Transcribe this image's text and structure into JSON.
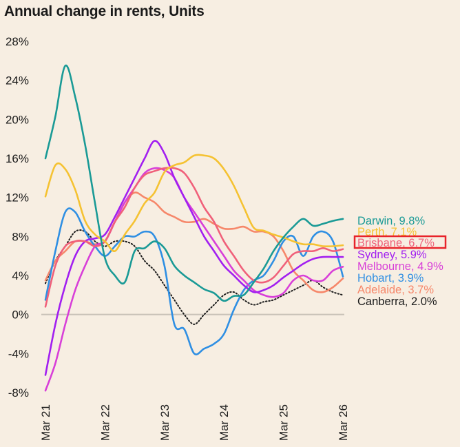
{
  "chart_data": {
    "type": "line",
    "title": "Annual change in rents, Units",
    "xlabel": "",
    "ylabel": "",
    "ylim": [
      -8,
      28
    ],
    "yticks": [
      -8,
      -4,
      0,
      4,
      8,
      12,
      16,
      20,
      24,
      28
    ],
    "ytick_labels": [
      "-8%",
      "-4%",
      "0%",
      "4%",
      "8%",
      "12%",
      "16%",
      "20%",
      "24%",
      "28%"
    ],
    "xticks": [
      "2021-03",
      "2022-03",
      "2023-03",
      "2024-03",
      "2025-03",
      "2026-03"
    ],
    "xtick_labels": [
      "Mar 21",
      "Mar 22",
      "Mar 23",
      "Mar 24",
      "Mar 25",
      "Mar 26"
    ],
    "grid": false,
    "legend_placement": "right (end-of-line labels)",
    "highlighted_series": "Brisbane",
    "highlight_color": "#e8232a",
    "x": [
      "2021-03",
      "2021-05",
      "2021-07",
      "2021-09",
      "2021-11",
      "2022-01",
      "2022-03",
      "2022-05",
      "2022-07",
      "2022-09",
      "2022-11",
      "2023-01",
      "2023-03",
      "2023-05",
      "2023-07",
      "2023-09",
      "2023-11",
      "2024-01",
      "2024-03",
      "2024-05",
      "2024-07",
      "2024-09",
      "2024-11",
      "2025-01",
      "2025-03",
      "2025-05",
      "2025-07",
      "2025-09",
      "2025-11",
      "2026-01",
      "2026-03"
    ],
    "series": [
      {
        "name": "Darwin",
        "label": "Darwin, 9.8%",
        "color": "#1a9a96",
        "dash": false,
        "values": [
          16,
          20.3,
          25.5,
          22.3,
          17.4,
          11.4,
          5.8,
          4,
          3.3,
          6.5,
          6.8,
          7.5,
          6.8,
          5,
          4,
          3.3,
          2.6,
          2.2,
          1.4,
          1.9,
          2,
          3.3,
          4.7,
          6.5,
          7.9,
          9,
          9.8,
          9.1,
          9.3,
          9.6,
          9.8
        ]
      },
      {
        "name": "Perth",
        "label": "Perth, 7.1%",
        "color": "#f5c232",
        "dash": false,
        "values": [
          12.1,
          15.3,
          14.9,
          12.8,
          9.6,
          8.2,
          7.5,
          6.5,
          8.2,
          9.6,
          11.4,
          12.5,
          14.6,
          15.3,
          15.6,
          16.3,
          16.3,
          16,
          14.9,
          13.2,
          11,
          8.9,
          8.6,
          8.2,
          7.9,
          7.5,
          7.2,
          7.2,
          7,
          7,
          7.1
        ]
      },
      {
        "name": "Brisbane",
        "label": "Brisbane, 6.7%",
        "color": "#f0607a",
        "dash": false,
        "values": [
          0.8,
          5,
          7,
          7.5,
          7.5,
          7,
          7.5,
          9.5,
          11,
          13,
          14.3,
          14.7,
          15,
          15,
          14.5,
          13,
          11,
          9.5,
          7.5,
          6,
          4.5,
          3.5,
          3.3,
          3.8,
          5,
          6.2,
          6.5,
          6.5,
          6.8,
          6.5,
          6.7
        ]
      },
      {
        "name": "Sydney",
        "label": "Sydney, 5.9%",
        "color": "#a21ff0",
        "dash": false,
        "values": [
          -6.2,
          -1,
          3,
          6,
          7.5,
          7.8,
          8.2,
          10,
          12,
          14,
          16,
          17.8,
          16.5,
          14,
          12,
          10,
          8,
          6.5,
          5,
          4,
          3,
          2.3,
          2.5,
          3,
          3.8,
          4.5,
          5.2,
          5.7,
          5.9,
          5.9,
          5.9
        ]
      },
      {
        "name": "Melbourne",
        "label": "Melbourne, 4.9%",
        "color": "#d83fd8",
        "dash": false,
        "values": [
          -7.8,
          -5,
          -1,
          2.5,
          5,
          7,
          7.5,
          9.5,
          11.5,
          13,
          14.5,
          15,
          14.8,
          14,
          12,
          10.5,
          9,
          7.5,
          6,
          4.5,
          3.5,
          2.5,
          2,
          1.8,
          2.2,
          3.5,
          4,
          3.5,
          3.5,
          4.5,
          4.9
        ]
      },
      {
        "name": "Hobart",
        "label": "Hobart, 3.9%",
        "color": "#2f8fe3",
        "dash": false,
        "values": [
          1.5,
          6.5,
          10.5,
          10.5,
          8.5,
          7,
          6,
          7,
          8,
          8,
          8.5,
          8,
          5,
          -1,
          -1.5,
          -4,
          -3.5,
          -3,
          -2,
          0.5,
          2.5,
          3.5,
          4,
          5.5,
          7.5,
          8,
          6,
          8,
          8.5,
          7.5,
          3.9
        ]
      },
      {
        "name": "Adelaide",
        "label": "Adelaide, 3.7%",
        "color": "#f6876a",
        "dash": false,
        "values": [
          3.5,
          5.5,
          6.5,
          7.5,
          7.5,
          7.2,
          7.5,
          9.5,
          11.5,
          12.5,
          12,
          11.5,
          10.5,
          10,
          9.5,
          9.5,
          9.8,
          9.3,
          8.8,
          8.8,
          9,
          8.5,
          8.5,
          8,
          6.5,
          4.5,
          3.5,
          2.5,
          2.3,
          2.8,
          3.7
        ]
      },
      {
        "name": "Canberra",
        "label": "Canberra, 2.0%",
        "color": "#1a1a1a",
        "dash": true,
        "values": [
          3.2,
          5.5,
          7,
          8.5,
          8.5,
          7.5,
          7,
          7.5,
          7.5,
          7,
          5.5,
          4.5,
          3,
          1.5,
          0,
          -1,
          0,
          1,
          2,
          2.3,
          1.5,
          1,
          1.3,
          1.5,
          2,
          2.5,
          3,
          3.5,
          2.8,
          2.3,
          2.0
        ]
      }
    ]
  }
}
